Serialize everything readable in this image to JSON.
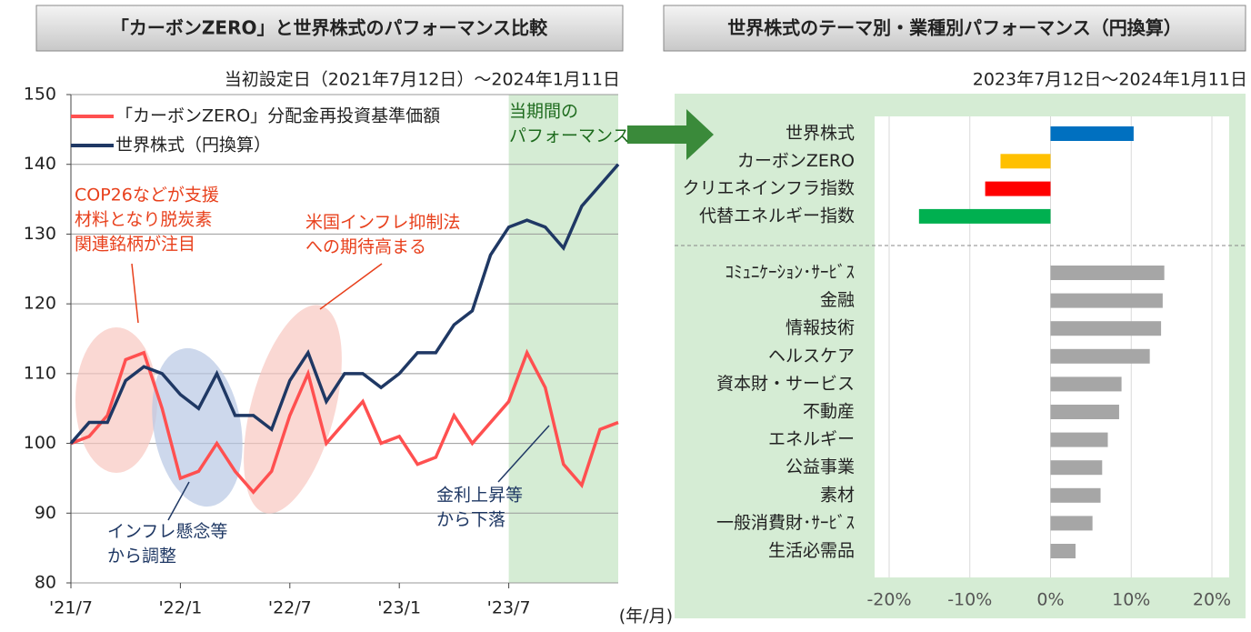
{
  "chart_data": [
    {
      "type": "line",
      "title": "「カーボンZERO」と世界株式のパフォーマンス比較",
      "subtitle": "当初設定日（2021年7月12日）～2024年1月11日",
      "x_unit": "(年/月)",
      "x": [
        "2021/07",
        "2021/08",
        "2021/09",
        "2021/10",
        "2021/11",
        "2021/12",
        "2022/01",
        "2022/02",
        "2022/03",
        "2022/04",
        "2022/05",
        "2022/06",
        "2022/07",
        "2022/08",
        "2022/09",
        "2022/10",
        "2022/11",
        "2022/12",
        "2023/01",
        "2023/02",
        "2023/03",
        "2023/04",
        "2023/05",
        "2023/06",
        "2023/07",
        "2023/08",
        "2023/09",
        "2023/10",
        "2023/11",
        "2023/12",
        "2024/01"
      ],
      "series": [
        {
          "name": "「カーボンZERO」分配金再投資基準価額",
          "color": "#ff5050",
          "values": [
            100,
            101,
            104,
            112,
            113,
            105,
            95,
            96,
            100,
            96,
            93,
            96,
            104,
            110,
            100,
            103,
            106,
            100,
            101,
            97,
            98,
            104,
            100,
            103,
            106,
            113,
            108,
            97,
            94,
            102,
            103
          ]
        },
        {
          "name": "世界株式（円換算）",
          "color": "#1f3864",
          "values": [
            100,
            103,
            103,
            109,
            111,
            110,
            107,
            105,
            110,
            104,
            104,
            102,
            109,
            113,
            106,
            110,
            110,
            108,
            110,
            113,
            113,
            117,
            119,
            127,
            131,
            132,
            131,
            128,
            134,
            137,
            140
          ]
        }
      ],
      "xlim": [
        "2021/07",
        "2024/01"
      ],
      "xticks": [
        {
          "value": "2021/07",
          "label": "'21/7"
        },
        {
          "value": "2022/01",
          "label": "'22/1"
        },
        {
          "value": "2022/07",
          "label": "'22/7"
        },
        {
          "value": "2023/01",
          "label": "'23/1"
        },
        {
          "value": "2023/07",
          "label": "'23/7"
        }
      ],
      "ylim": [
        80,
        150
      ],
      "yticks": [
        80,
        90,
        100,
        110,
        120,
        130,
        140,
        150
      ],
      "grid": true,
      "highlight": {
        "from": "2023/07",
        "to": "2024/01",
        "color": "#d5ecd4",
        "label": [
          "当期間の",
          "パフォーマンス"
        ]
      },
      "annotations": [
        {
          "lines": [
            "COP26などが支援",
            "材料となり脱炭素",
            "関連銘柄が注目"
          ],
          "color": "#e8401c"
        },
        {
          "lines": [
            "米国インフレ抑制法",
            "への期待高まる"
          ],
          "color": "#e8401c"
        },
        {
          "lines": [
            "インフレ懸念等",
            "から調整"
          ],
          "color": "#1f3864"
        },
        {
          "lines": [
            "金利上昇等",
            "から下落"
          ],
          "color": "#1f3864"
        }
      ]
    },
    {
      "type": "hbar",
      "title": "世界株式のテーマ別・業種別パフォーマンス（円換算）",
      "subtitle": "2023年7月12日～2024年1月11日",
      "categories": [
        "世界株式",
        "カーボンZERO",
        "クリエネインフラ指数",
        "代替エネルギー指数",
        "ｺﾐｭﾆｹｰｼｮﾝ･ｻｰﾋﾞｽ",
        "金融",
        "情報技術",
        "ヘルスケア",
        "資本財・サービス",
        "不動産",
        "エネルギー",
        "公益事業",
        "素材",
        "一般消費財･ｻｰﾋﾞｽ",
        "生活必需品"
      ],
      "values": [
        10.3,
        -6.2,
        -8.1,
        -16.3,
        14.1,
        13.9,
        13.7,
        12.3,
        8.8,
        8.5,
        7.1,
        6.4,
        6.2,
        5.2,
        3.1
      ],
      "colors": [
        "#0070c0",
        "#ffc000",
        "#ff0000",
        "#00b050",
        "#a6a6a6",
        "#a6a6a6",
        "#a6a6a6",
        "#a6a6a6",
        "#a6a6a6",
        "#a6a6a6",
        "#a6a6a6",
        "#a6a6a6",
        "#a6a6a6",
        "#a6a6a6",
        "#a6a6a6"
      ],
      "xlim": [
        -20,
        20
      ],
      "xticks": [
        {
          "value": -20,
          "label": "-20%"
        },
        {
          "value": -10,
          "label": "-10%"
        },
        {
          "value": 0,
          "label": "0%"
        },
        {
          "value": 10,
          "label": "10%"
        },
        {
          "value": 20,
          "label": "20%"
        }
      ],
      "grid": true
    }
  ]
}
